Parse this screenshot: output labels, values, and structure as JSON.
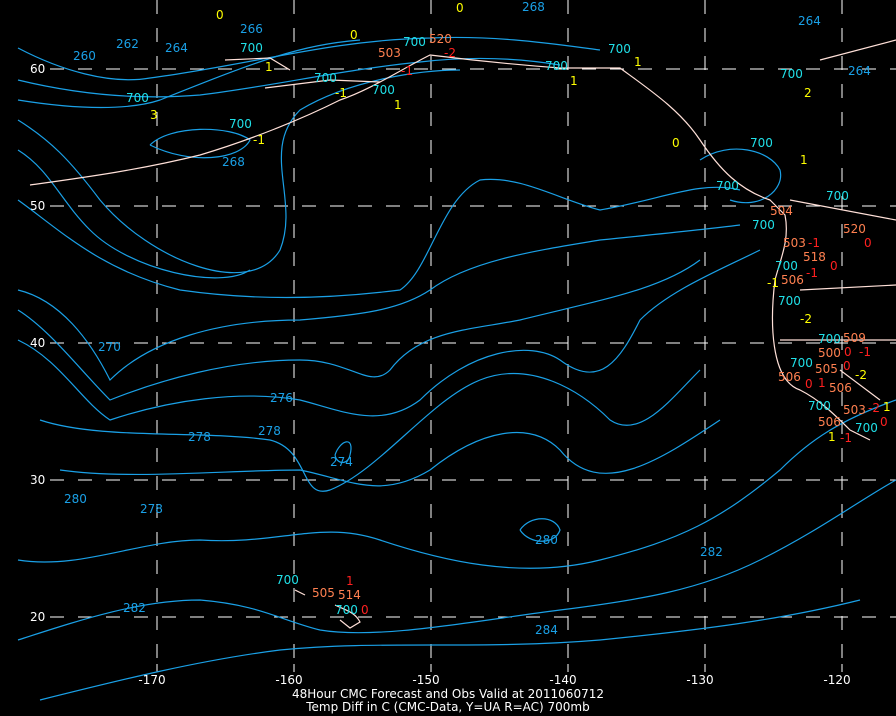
{
  "map": {
    "title_line1": "48Hour CMC Forecast and Obs Valid at 2011060712",
    "title_line2": "Temp Diff in C (CMC-Data, Y=UA R=AC) 700mb",
    "longitude_labels": [
      "-170",
      "-160",
      "-150",
      "-140",
      "-130",
      "-120"
    ],
    "latitude_labels": [
      "60",
      "50",
      "40",
      "30",
      "20"
    ],
    "contour_labels": [
      "262",
      "260",
      "264",
      "266",
      "268",
      "268",
      "264",
      "264",
      "270",
      "276",
      "278",
      "278",
      "274",
      "280",
      "278",
      "280",
      "282",
      "282",
      "284"
    ],
    "level_labels": [
      "700",
      "700",
      "700",
      "700",
      "700",
      "700",
      "700",
      "700",
      "700",
      "700",
      "700",
      "700",
      "700",
      "700",
      "700",
      "700",
      "700",
      "700",
      "700",
      "700",
      "700"
    ],
    "obs_height_labels": [
      "503",
      "520",
      "504",
      "503",
      "506",
      "518",
      "520",
      "500",
      "505",
      "506",
      "506",
      "503",
      "506",
      "505",
      "514",
      "509"
    ],
    "obs_temp_diff_accent": [
      "-2",
      "-1",
      "-1",
      "0",
      "0",
      "-1",
      "0",
      "0",
      "1",
      "0",
      "-2",
      "0",
      "-1",
      "0",
      "1",
      "-1"
    ],
    "obs_temp_diff_upper": [
      "0",
      "0",
      "1",
      "-1",
      "3",
      "1",
      "-1",
      "0",
      "1",
      "1",
      "2",
      "1",
      "0",
      "-1",
      "-2",
      "-2",
      "1",
      "1"
    ],
    "colors": {
      "background": "#000000",
      "contour": "#1aa0e6",
      "level_label": "#20e0e8",
      "coastline": "#ffe0d8",
      "grid": "#ffffff",
      "obs_height": "#ff8050",
      "obs_temp_accent": "#ff2020",
      "obs_temp_upper": "#ffff00"
    }
  }
}
